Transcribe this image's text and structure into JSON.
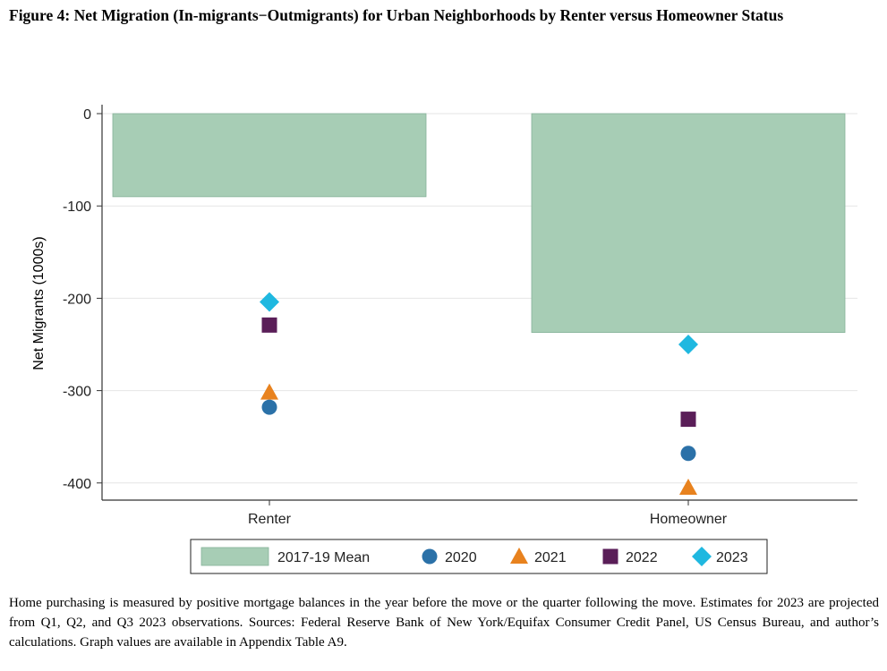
{
  "figure": {
    "title": "Figure 4: Net Migration (In-migrants−Outmigrants) for Urban Neighborhoods by Renter versus Homeowner Status",
    "footnote": "Home purchasing is measured by positive mortgage balances in the year before the move or the quarter following the move. Estimates for 2023 are projected from Q1, Q2, and Q3 2023 observations. Sources: Federal Reserve Bank of New York/Equifax Consumer Credit Panel, US Census Bureau, and author’s calculations. Graph values are available in Appendix Table A9."
  },
  "chart_data": {
    "type": "bar",
    "categories": [
      "Renter",
      "Homeowner"
    ],
    "ylabel": "Net Migrants (1000s)",
    "xlabel": "",
    "ylim": [
      -410,
      10
    ],
    "yticks": [
      0,
      -100,
      -200,
      -300,
      -400
    ],
    "grid": true,
    "legend_position": "bottom",
    "bar_series": {
      "name": "2017-19 Mean",
      "values": [
        -90,
        -237
      ],
      "color": "#a7cdb5"
    },
    "point_series": [
      {
        "name": "2020",
        "marker": "circle",
        "color": "#2b71a8",
        "values": [
          -318,
          -368
        ]
      },
      {
        "name": "2021",
        "marker": "triangle",
        "color": "#e8821e",
        "values": [
          -302,
          -405
        ]
      },
      {
        "name": "2022",
        "marker": "square",
        "color": "#5a1e58",
        "values": [
          -229,
          -331
        ]
      },
      {
        "name": "2023",
        "marker": "diamond",
        "color": "#1fb8e0",
        "values": [
          -204,
          -250
        ]
      }
    ]
  }
}
